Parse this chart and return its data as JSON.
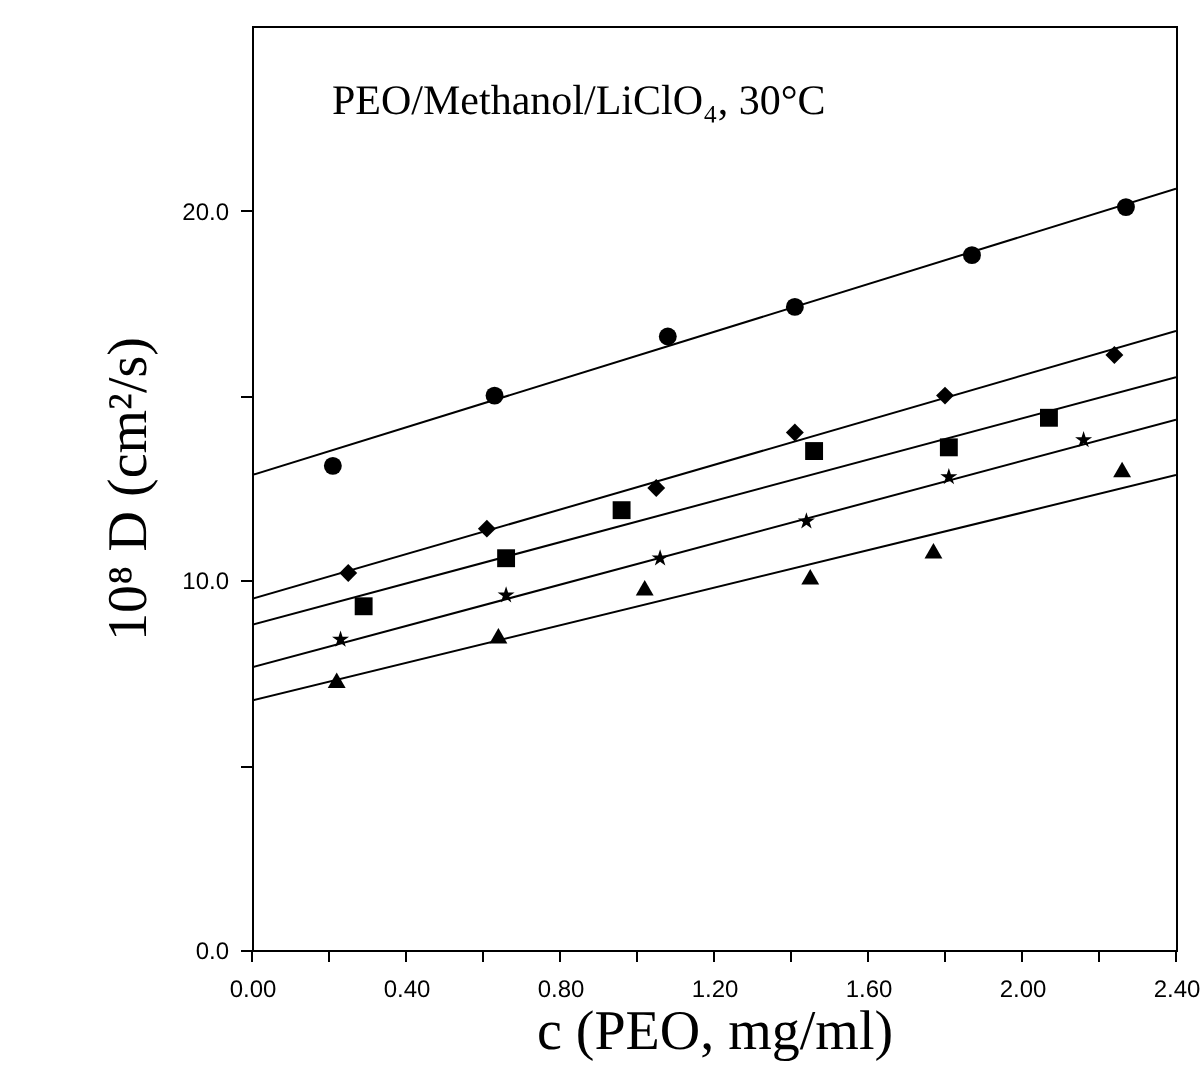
{
  "chart_data": {
    "type": "scatter",
    "annotations": [
      "PEO/Methanol/LiClO₄, 30°C"
    ],
    "xlabel": "c (PEO, mg/ml)",
    "ylabel": "10⁸ D (cm²/s)",
    "xlim": [
      0,
      2.4
    ],
    "ylim": [
      0,
      25
    ],
    "xticks": [
      {
        "value": 0,
        "label": "0.00"
      },
      {
        "value": 0.2,
        "label": null
      },
      {
        "value": 0.4,
        "label": "0.40"
      },
      {
        "value": 0.6,
        "label": null
      },
      {
        "value": 0.8,
        "label": "0.80"
      },
      {
        "value": 1.0,
        "label": null
      },
      {
        "value": 1.2,
        "label": "1.20"
      },
      {
        "value": 1.4,
        "label": null
      },
      {
        "value": 1.6,
        "label": "1.60"
      },
      {
        "value": 1.8,
        "label": null
      },
      {
        "value": 2.0,
        "label": "2.00"
      },
      {
        "value": 2.2,
        "label": null
      },
      {
        "value": 2.4,
        "label": "2.40"
      }
    ],
    "yticks": [
      {
        "value": 0,
        "label": "0.0"
      },
      {
        "value": 5,
        "label": null
      },
      {
        "value": 10,
        "label": "10.0"
      },
      {
        "value": 15,
        "label": null
      },
      {
        "value": 20,
        "label": "20.0"
      }
    ],
    "grid": false,
    "series": [
      {
        "type": "scatter",
        "marker": "circle",
        "color": "#000000",
        "x": [
          0.21,
          0.63,
          1.08,
          1.41,
          1.87,
          2.27
        ],
        "values": [
          13.1,
          15.0,
          16.6,
          17.4,
          18.8,
          20.1
        ]
      },
      {
        "type": "scatter",
        "marker": "diamond",
        "color": "#000000",
        "x": [
          0.25,
          0.61,
          1.05,
          1.41,
          1.8,
          2.24
        ],
        "values": [
          10.2,
          11.4,
          12.5,
          14.0,
          15.0,
          16.1
        ]
      },
      {
        "type": "scatter",
        "marker": "square",
        "color": "#000000",
        "x": [
          0.29,
          0.66,
          0.96,
          1.46,
          1.81,
          2.07
        ],
        "values": [
          9.3,
          10.6,
          11.9,
          13.5,
          13.6,
          14.4
        ]
      },
      {
        "type": "scatter",
        "marker": "star",
        "color": "#000000",
        "x": [
          0.23,
          0.66,
          1.06,
          1.44,
          1.81,
          2.16
        ],
        "values": [
          8.4,
          9.6,
          10.6,
          11.6,
          12.8,
          13.8
        ]
      },
      {
        "type": "scatter",
        "marker": "triangle",
        "color": "#000000",
        "x": [
          0.22,
          0.64,
          1.02,
          1.45,
          1.77,
          2.26
        ],
        "values": [
          7.3,
          8.5,
          9.8,
          10.1,
          10.8,
          13.0
        ]
      },
      {
        "type": "line",
        "marker": "none",
        "color": "#000000",
        "x": [
          0,
          2.4
        ],
        "values": [
          12.85,
          20.6
        ]
      },
      {
        "type": "line",
        "marker": "none",
        "color": "#000000",
        "x": [
          0,
          2.4
        ],
        "values": [
          9.5,
          16.75
        ]
      },
      {
        "type": "line",
        "marker": "none",
        "color": "#000000",
        "x": [
          0,
          2.4
        ],
        "values": [
          8.8,
          15.5
        ]
      },
      {
        "type": "line",
        "marker": "none",
        "color": "#000000",
        "x": [
          0,
          2.4
        ],
        "values": [
          7.65,
          14.35
        ]
      },
      {
        "type": "line",
        "marker": "none",
        "color": "#000000",
        "x": [
          0,
          2.4
        ],
        "values": [
          6.75,
          12.85
        ]
      }
    ]
  }
}
